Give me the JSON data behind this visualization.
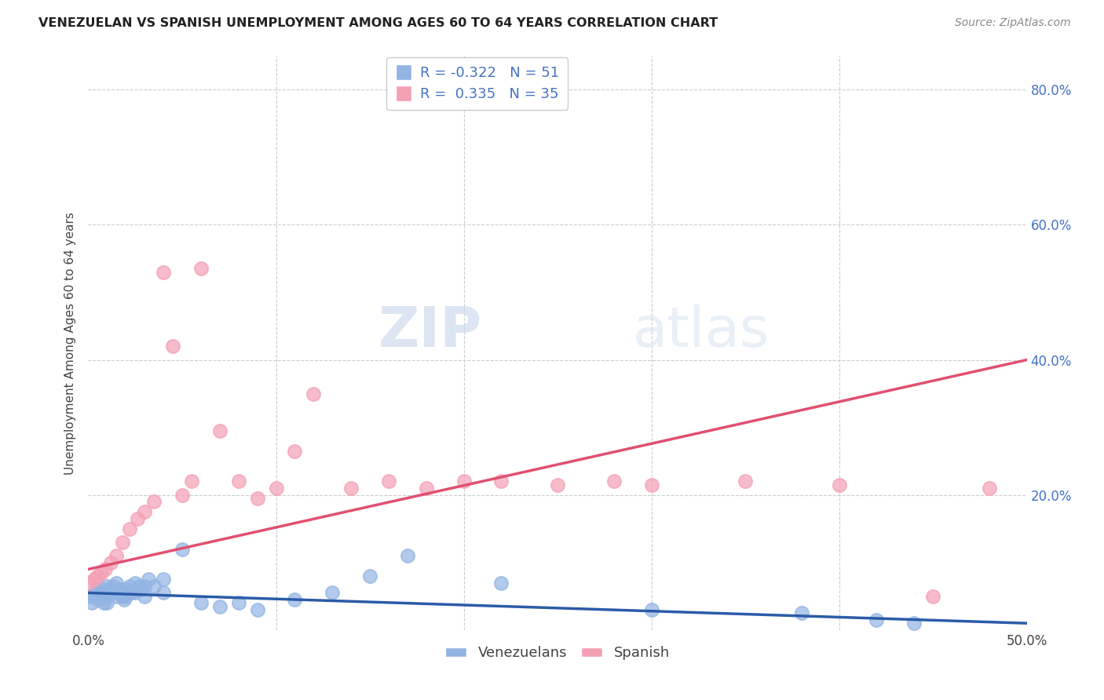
{
  "title": "VENEZUELAN VS SPANISH UNEMPLOYMENT AMONG AGES 60 TO 64 YEARS CORRELATION CHART",
  "source": "Source: ZipAtlas.com",
  "ylabel": "Unemployment Among Ages 60 to 64 years",
  "xlim": [
    0.0,
    0.5
  ],
  "ylim": [
    0.0,
    0.85
  ],
  "venezuelan_color": "#92b4e3",
  "spanish_color": "#f4a0b5",
  "trendline_venezuelan_color": "#2b5ba8",
  "trendline_spanish_color": "#e05070",
  "legend_R_venezuelan": "-0.322",
  "legend_N_venezuelan": "51",
  "legend_R_spanish": "0.335",
  "legend_N_spanish": "35",
  "watermark_zip": "ZIP",
  "watermark_atlas": "atlas",
  "venezuelan_x": [
    0.0,
    0.002,
    0.003,
    0.004,
    0.005,
    0.005,
    0.006,
    0.007,
    0.008,
    0.008,
    0.009,
    0.01,
    0.01,
    0.01,
    0.012,
    0.013,
    0.014,
    0.015,
    0.015,
    0.016,
    0.017,
    0.018,
    0.019,
    0.02,
    0.02,
    0.022,
    0.023,
    0.025,
    0.025,
    0.027,
    0.028,
    0.03,
    0.03,
    0.032,
    0.035,
    0.04,
    0.04,
    0.05,
    0.06,
    0.07,
    0.08,
    0.09,
    0.11,
    0.13,
    0.15,
    0.17,
    0.22,
    0.3,
    0.38,
    0.42,
    0.44
  ],
  "venezuelan_y": [
    0.05,
    0.04,
    0.05,
    0.06,
    0.055,
    0.045,
    0.05,
    0.055,
    0.06,
    0.04,
    0.05,
    0.065,
    0.055,
    0.04,
    0.06,
    0.065,
    0.055,
    0.07,
    0.05,
    0.055,
    0.06,
    0.05,
    0.045,
    0.06,
    0.05,
    0.065,
    0.055,
    0.07,
    0.055,
    0.065,
    0.06,
    0.065,
    0.05,
    0.075,
    0.065,
    0.075,
    0.055,
    0.12,
    0.04,
    0.035,
    0.04,
    0.03,
    0.045,
    0.055,
    0.08,
    0.11,
    0.07,
    0.03,
    0.025,
    0.015,
    0.01
  ],
  "spanish_x": [
    0.0,
    0.003,
    0.005,
    0.007,
    0.009,
    0.012,
    0.015,
    0.018,
    0.022,
    0.026,
    0.03,
    0.035,
    0.04,
    0.045,
    0.05,
    0.055,
    0.06,
    0.07,
    0.08,
    0.09,
    0.1,
    0.11,
    0.12,
    0.14,
    0.16,
    0.18,
    0.2,
    0.22,
    0.25,
    0.28,
    0.3,
    0.35,
    0.4,
    0.45,
    0.48
  ],
  "spanish_y": [
    0.07,
    0.075,
    0.08,
    0.085,
    0.09,
    0.1,
    0.11,
    0.13,
    0.15,
    0.165,
    0.175,
    0.19,
    0.53,
    0.42,
    0.2,
    0.22,
    0.535,
    0.295,
    0.22,
    0.195,
    0.21,
    0.265,
    0.35,
    0.21,
    0.22,
    0.21,
    0.22,
    0.22,
    0.215,
    0.22,
    0.215,
    0.22,
    0.215,
    0.05,
    0.21
  ],
  "trendline_spanish_x0": 0.0,
  "trendline_spanish_y0": 0.09,
  "trendline_spanish_x1": 0.5,
  "trendline_spanish_y1": 0.4,
  "trendline_venezuelan_x0": 0.0,
  "trendline_venezuelan_y0": 0.055,
  "trendline_venezuelan_x1": 0.5,
  "trendline_venezuelan_y1": 0.01
}
